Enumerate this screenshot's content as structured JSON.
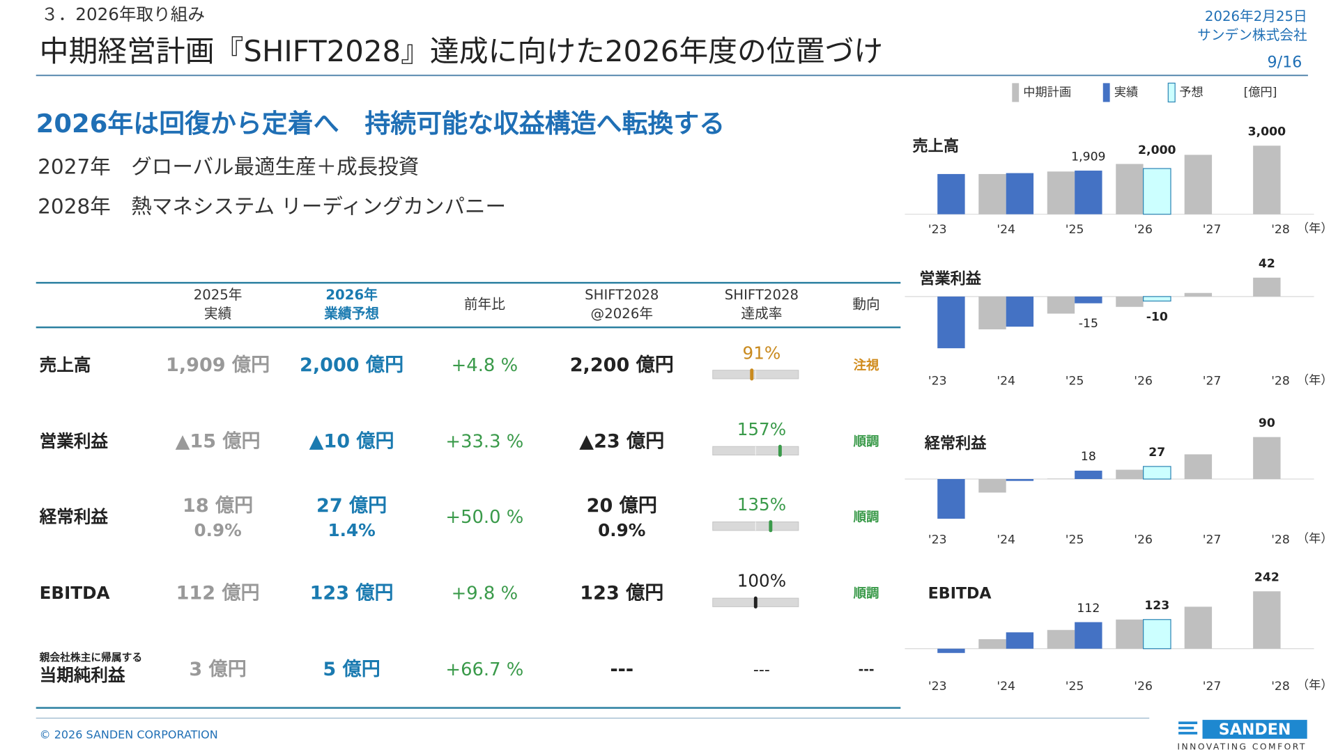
{
  "header": {
    "section": "３．2026年取り組み",
    "title": "中期経営計画『SHIFT2028』達成に向けた2026年度の位置づけ",
    "date": "2026年2月25日",
    "company": "サンデン株式会社",
    "page": "9/16"
  },
  "headline": "2026年は回復から定着へ　持続可能な収益構造へ転換する",
  "roadmap": [
    "2027年　グローバル最適生産＋成長投資",
    "2028年　熱マネシステム リーディングカンパニー"
  ],
  "table": {
    "headers": [
      [
        "2025年",
        "実績"
      ],
      [
        "2026年",
        "業績予想"
      ],
      [
        "前年比"
      ],
      [
        "SHIFT2028",
        "@2026年"
      ],
      [
        "SHIFT2028",
        "達成率"
      ],
      [
        "動向"
      ]
    ],
    "gauge_range": [
      0,
      200
    ],
    "rows": [
      {
        "name": "売上高",
        "actual": [
          "1,909 億円"
        ],
        "forecast": [
          "2,000 億円"
        ],
        "yoy": "+4.8 %",
        "plan": [
          "2,200 億円"
        ],
        "rate": {
          "value": 91,
          "label": "91%"
        },
        "rate_color": "#c98a1e",
        "trend": "注視",
        "trend_color": "#d08a1a"
      },
      {
        "name": "営業利益",
        "actual": [
          "▲15 億円"
        ],
        "forecast": [
          "▲10 億円"
        ],
        "yoy": "+33.3 %",
        "plan": [
          "▲23 億円"
        ],
        "rate": {
          "value": 157,
          "label": "157%"
        },
        "rate_color": "#3a9a4a",
        "trend": "順調",
        "trend_color": "#3a9a4a"
      },
      {
        "name": "経常利益",
        "actual": [
          "18 億円",
          "0.9%"
        ],
        "forecast": [
          "27 億円",
          "1.4%"
        ],
        "yoy": "+50.0 %",
        "plan": [
          "20 億円",
          "0.9%"
        ],
        "rate": {
          "value": 135,
          "label": "135%"
        },
        "rate_color": "#3a9a4a",
        "trend": "順調",
        "trend_color": "#3a9a4a"
      },
      {
        "name": "EBITDA",
        "actual": [
          "112 億円"
        ],
        "forecast": [
          "123 億円"
        ],
        "yoy": "+9.8 %",
        "plan": [
          "123 億円"
        ],
        "rate": {
          "value": 100,
          "label": "100%"
        },
        "rate_color": "#222222",
        "trend": "順調",
        "trend_color": "#3a9a4a"
      },
      {
        "note": "親会社株主に帰属する",
        "name": "当期純利益",
        "actual": [
          "3 億円"
        ],
        "forecast": [
          "5 億円"
        ],
        "yoy": "+66.7 %",
        "plan": [
          "---"
        ],
        "rate_text": "---",
        "trend": "---",
        "trend_color": "#222222"
      }
    ]
  },
  "charts": {
    "legend": [
      {
        "name": "中期計画",
        "color": "#bfbfbf"
      },
      {
        "name": "実績",
        "color": "#4472c4"
      },
      {
        "name": "予想",
        "color": "#ccffff",
        "stroke": "#2e86b5"
      }
    ],
    "unit": "[億円]",
    "categories": [
      "'23",
      "'24",
      "'25",
      "'26",
      "'27",
      "'28"
    ],
    "year_unit": "（年）",
    "items": [
      {
        "title": "売上高",
        "ylim": [
          0,
          3000
        ],
        "series": [
          {
            "values": [
              null,
              1760,
              1870,
              2200,
              2600,
              3000
            ],
            "value_labels": [
              null,
              null,
              null,
              null,
              null,
              "3,000"
            ]
          },
          {
            "values": [
              1760,
              1800,
              1909,
              null,
              null,
              null
            ],
            "value_labels": [
              null,
              null,
              "1,909",
              null,
              null,
              null
            ]
          },
          {
            "values": [
              null,
              null,
              null,
              2000,
              null,
              null
            ],
            "value_labels": [
              null,
              null,
              null,
              "2,000",
              null,
              null
            ]
          }
        ]
      },
      {
        "title": "営業利益",
        "ylim": [
          -120,
          42
        ],
        "series": [
          {
            "values": [
              null,
              -73,
              -38,
              -23,
              8,
              42
            ],
            "value_labels": [
              null,
              null,
              null,
              null,
              null,
              "42"
            ]
          },
          {
            "values": [
              -115,
              -67,
              -15,
              null,
              null,
              null
            ],
            "value_labels": [
              null,
              null,
              "-15",
              null,
              null,
              null
            ]
          },
          {
            "values": [
              null,
              null,
              null,
              -10,
              null,
              null
            ],
            "value_labels": [
              null,
              null,
              null,
              "-10",
              null,
              null
            ]
          }
        ]
      },
      {
        "title": "経常利益",
        "ylim": [
          -90,
          90
        ],
        "series": [
          {
            "values": [
              null,
              -29,
              1,
              20,
              53,
              90
            ],
            "value_labels": [
              null,
              null,
              null,
              null,
              null,
              "90"
            ]
          },
          {
            "values": [
              -85,
              -4,
              18,
              null,
              null,
              null
            ],
            "value_labels": [
              null,
              null,
              "18",
              null,
              null,
              null
            ]
          },
          {
            "values": [
              null,
              null,
              null,
              27,
              null,
              null
            ],
            "value_labels": [
              null,
              null,
              null,
              "27",
              null,
              null
            ]
          }
        ]
      },
      {
        "title": "EBITDA",
        "ylim": [
          -20,
          242
        ],
        "series": [
          {
            "values": [
              null,
              40,
              79,
              123,
              177,
              242
            ],
            "value_labels": [
              null,
              null,
              null,
              null,
              null,
              "242"
            ]
          },
          {
            "values": [
              -18,
              69,
              112,
              null,
              null,
              null
            ],
            "value_labels": [
              null,
              null,
              "112",
              null,
              null,
              null
            ]
          },
          {
            "values": [
              null,
              null,
              null,
              123,
              null,
              null
            ],
            "value_labels": [
              null,
              null,
              null,
              "123",
              null,
              null
            ]
          }
        ]
      }
    ]
  },
  "footer": {
    "copyright": "© 2026 SANDEN CORPORATION",
    "logo": "SANDEN",
    "tagline": "INNOVATING COMFORT"
  }
}
